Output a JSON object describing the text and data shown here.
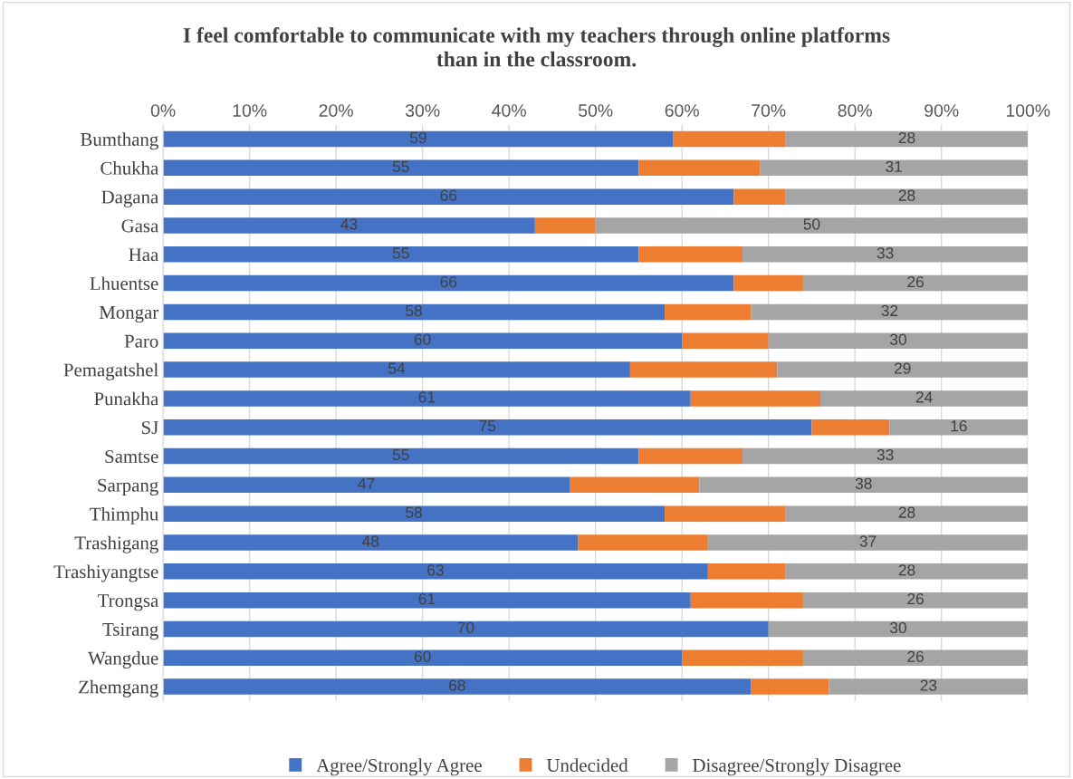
{
  "chart_data": {
    "type": "bar",
    "orientation": "horizontal",
    "stacked": true,
    "title": "I feel comfortable to communicate with my teachers through online platforms\nthan in the classroom.",
    "categories": [
      "Bumthang",
      "Chukha",
      "Dagana",
      "Gasa",
      "Haa",
      "Lhuentse",
      "Mongar",
      "Paro",
      "Pemagatshel",
      "Punakha",
      "SJ",
      "Samtse",
      "Sarpang",
      "Thimphu",
      "Trashigang",
      "Trashiyangtse",
      "Trongsa",
      "Tsirang",
      "Wangdue",
      "Zhemgang"
    ],
    "series": [
      {
        "name": "Agree/Strongly Agree",
        "color": "#4472c4",
        "values": [
          59,
          55,
          66,
          43,
          55,
          66,
          58,
          60,
          54,
          61,
          75,
          55,
          47,
          58,
          48,
          63,
          61,
          70,
          60,
          68
        ],
        "value_labels": [
          "59",
          "55",
          "66",
          "43",
          "55",
          "66",
          "58",
          "60",
          "54",
          "61",
          "75",
          "55",
          "47",
          "58",
          "48",
          "63",
          "61",
          "70",
          "60",
          "68"
        ]
      },
      {
        "name": "Undecided",
        "color": "#ed7d31",
        "values": [
          13,
          14,
          6,
          7,
          12,
          8,
          10,
          10,
          17,
          15,
          9,
          12,
          15,
          14,
          15,
          9,
          13,
          0,
          14,
          9
        ]
      },
      {
        "name": "Disagree/Strongly Disagree",
        "color": "#a5a5a5",
        "values": [
          28,
          31,
          28,
          50,
          33,
          26,
          32,
          30,
          29,
          24,
          16,
          33,
          38,
          28,
          37,
          28,
          26,
          30,
          26,
          23
        ],
        "value_labels": [
          "28",
          "31",
          "28",
          "50",
          "33",
          "26",
          "32",
          "30",
          "29",
          "24",
          "16",
          "33",
          "38",
          "28",
          "37",
          "28",
          "26",
          "30",
          "26",
          "23"
        ]
      }
    ],
    "xlim": [
      0,
      100
    ],
    "xticks": [
      {
        "value": 0,
        "label": "0%"
      },
      {
        "value": 10,
        "label": "10%"
      },
      {
        "value": 20,
        "label": "20%"
      },
      {
        "value": 30,
        "label": "30%"
      },
      {
        "value": 40,
        "label": "40%"
      },
      {
        "value": 50,
        "label": "50%"
      },
      {
        "value": 60,
        "label": "60%"
      },
      {
        "value": 70,
        "label": "70%"
      },
      {
        "value": 80,
        "label": "80%"
      },
      {
        "value": 90,
        "label": "90%"
      },
      {
        "value": 100,
        "label": "100%"
      }
    ],
    "grid": "x",
    "legend": "bottom"
  }
}
